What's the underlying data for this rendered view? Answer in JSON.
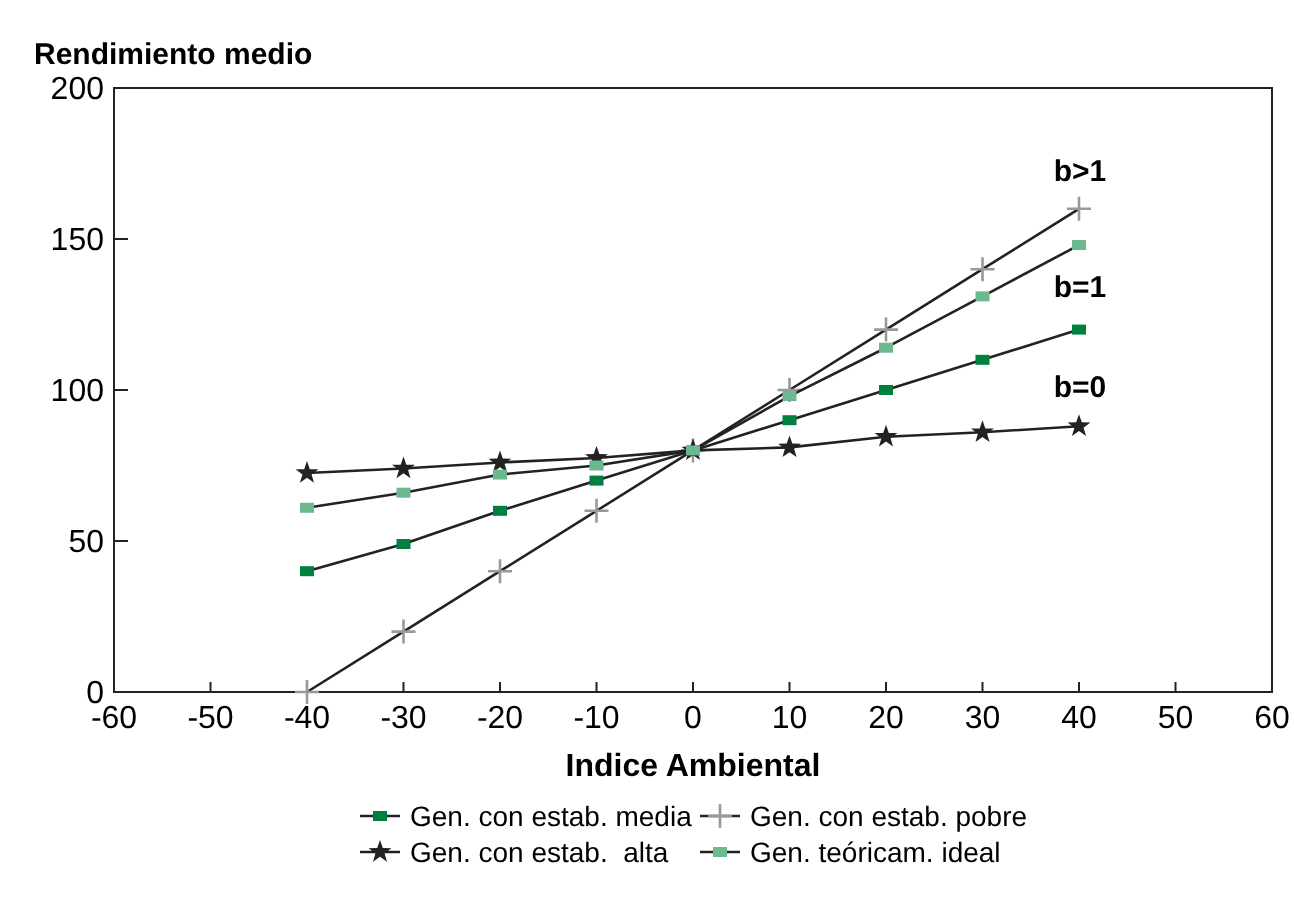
{
  "chart_data": {
    "type": "line",
    "ylabel": "Rendimiento medio",
    "xlabel": "Indice Ambiental",
    "x": [
      -40,
      -30,
      -20,
      -10,
      0,
      10,
      20,
      30,
      40
    ],
    "xlim": [
      -60,
      60
    ],
    "xticks": [
      -60,
      -50,
      -40,
      -30,
      -20,
      -10,
      0,
      10,
      20,
      30,
      40,
      50,
      60
    ],
    "ylim": [
      0,
      200
    ],
    "yticks": [
      0,
      50,
      100,
      150,
      200
    ],
    "series": [
      {
        "name": "Gen. con estab. media",
        "color": "#00803f",
        "marker": "square",
        "values": [
          40,
          49,
          60,
          70,
          80,
          90,
          100,
          110,
          120
        ]
      },
      {
        "name": "Gen. con estab. pobre",
        "color": "#999999",
        "marker": "cross",
        "values": [
          0,
          20,
          40,
          60,
          80,
          100,
          120,
          140,
          160
        ]
      },
      {
        "name": "Gen. con estab.  alta",
        "color": "#222222",
        "marker": "star",
        "values": [
          72.5,
          74,
          76,
          77.5,
          80,
          81,
          84.5,
          86,
          88
        ]
      },
      {
        "name": "Gen. teóricam. ideal",
        "color": "#6cb88f",
        "marker": "square",
        "values": [
          61,
          66,
          72,
          75,
          80,
          98,
          114,
          131,
          148
        ]
      }
    ],
    "annotations": [
      "b>1",
      "b=1",
      "b=0"
    ],
    "legend": "bottom",
    "grid": false
  }
}
